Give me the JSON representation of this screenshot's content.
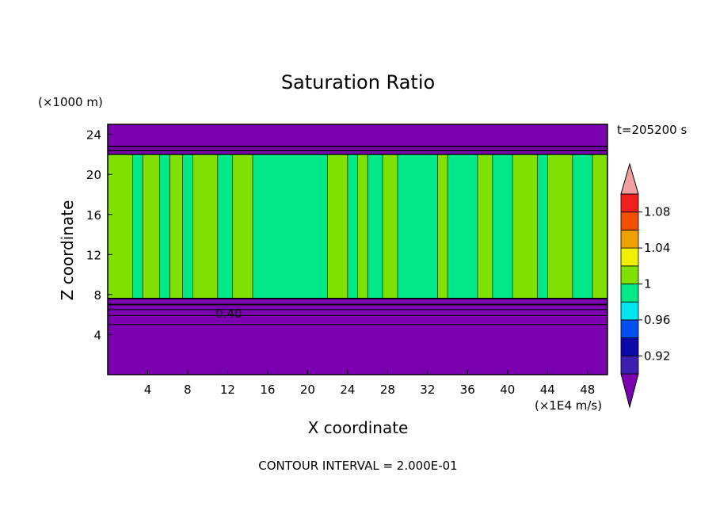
{
  "chart_data": {
    "type": "heatmap",
    "title": "Saturation Ratio",
    "xlabel": "X coordinate",
    "ylabel": "Z coordinate",
    "x_units": "(×1E4 m/s)",
    "y_units": "(×1000 m)",
    "time_label": "t=205200 s",
    "footer": "CONTOUR INTERVAL = 2.000E-01",
    "contour_label": "0.40",
    "xlim": [
      0,
      50
    ],
    "ylim": [
      0,
      25
    ],
    "x_ticks": [
      "4",
      "8",
      "12",
      "16",
      "20",
      "24",
      "28",
      "32",
      "36",
      "40",
      "44",
      "48"
    ],
    "y_ticks": [
      "4",
      "8",
      "12",
      "16",
      "20",
      "24"
    ],
    "x_tick_values": [
      4,
      8,
      12,
      16,
      20,
      24,
      28,
      32,
      36,
      40,
      44,
      48
    ],
    "y_tick_values": [
      4,
      8,
      12,
      16,
      20,
      24
    ],
    "colorbar": {
      "levels": [
        0.92,
        0.94,
        0.96,
        0.98,
        1.0,
        1.02,
        1.04,
        1.06,
        1.08,
        1.1
      ],
      "labels": [
        "0.92",
        "0.96",
        "1",
        "1.04",
        "1.08"
      ],
      "label_values": [
        0.92,
        0.96,
        1.0,
        1.04,
        1.08
      ],
      "colors": [
        "#7a00b0",
        "#3b1fb0",
        "#0a0aa8",
        "#0050f0",
        "#00e6f0",
        "#00e888",
        "#80e000",
        "#f0f000",
        "#f0a000",
        "#f05000",
        "#f02020",
        "#f0a0a0"
      ]
    },
    "regions": {
      "dry_color": "#7a00b0",
      "saturated_color": "#00e888",
      "supersat_color": "#80e000",
      "cloud_base_km": 7.6,
      "cloud_top_km": 22.0,
      "supersat_bands_x": [
        [
          0,
          2.5
        ],
        [
          3.5,
          5.2
        ],
        [
          6.2,
          7.5
        ],
        [
          8.5,
          11
        ],
        [
          12.5,
          14.5
        ],
        [
          22,
          24
        ],
        [
          25,
          26
        ],
        [
          27.5,
          29
        ],
        [
          33,
          34
        ],
        [
          37,
          38.5
        ],
        [
          40.5,
          43
        ],
        [
          44,
          46.5
        ],
        [
          48.5,
          50
        ]
      ]
    }
  }
}
